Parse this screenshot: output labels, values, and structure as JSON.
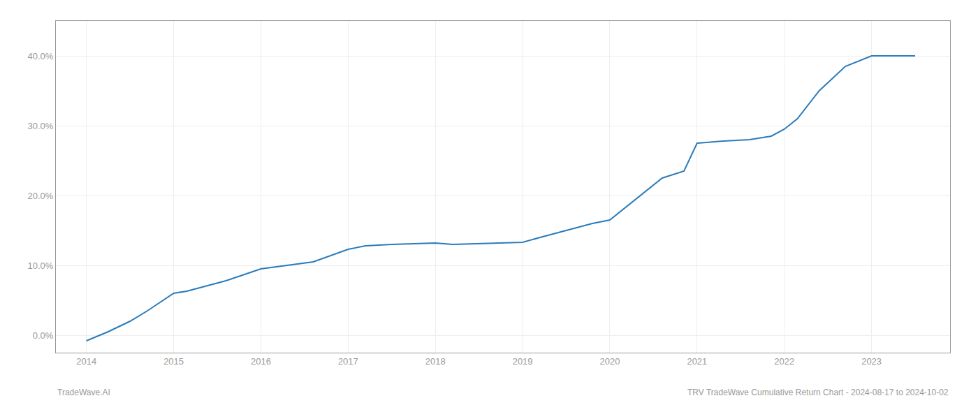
{
  "chart_data": {
    "type": "line",
    "x": [
      2014.0,
      2014.1,
      2014.25,
      2014.5,
      2014.7,
      2015.0,
      2015.15,
      2015.3,
      2015.6,
      2016.0,
      2016.3,
      2016.6,
      2017.0,
      2017.2,
      2017.5,
      2017.7,
      2018.0,
      2018.2,
      2018.5,
      2018.7,
      2019.0,
      2019.2,
      2019.5,
      2019.8,
      2020.0,
      2020.3,
      2020.6,
      2020.85,
      2021.0,
      2021.3,
      2021.6,
      2021.85,
      2022.0,
      2022.15,
      2022.4,
      2022.7,
      2023.0,
      2023.5
    ],
    "values": [
      -0.8,
      -0.3,
      0.5,
      2.0,
      3.5,
      6.0,
      6.3,
      6.8,
      7.8,
      9.5,
      10.0,
      10.5,
      12.3,
      12.8,
      13.0,
      13.1,
      13.2,
      13.0,
      13.1,
      13.2,
      13.3,
      14.0,
      15.0,
      16.0,
      16.5,
      19.5,
      22.5,
      23.5,
      27.5,
      27.8,
      28.0,
      28.5,
      29.5,
      31.0,
      35.0,
      38.5,
      40.0,
      40.0
    ],
    "color": "#2b7bba",
    "xlim": [
      2013.65,
      2023.9
    ],
    "xticks": [
      2014,
      2015,
      2016,
      2017,
      2018,
      2019,
      2020,
      2021,
      2022,
      2023
    ],
    "ylim": [
      -2.5,
      45
    ],
    "yticks": [
      {
        "value": 0,
        "label": "0.0%"
      },
      {
        "value": 10,
        "label": "10.0%"
      },
      {
        "value": 20,
        "label": "20.0%"
      },
      {
        "value": 30,
        "label": "30.0%"
      },
      {
        "value": 40,
        "label": "40.0%"
      }
    ],
    "grid": true,
    "annotations": [
      {
        "text": "TradeWave.AI"
      },
      {
        "text": "TRV TradeWave Cumulative Return Chart - 2024-08-17 to 2024-10-02"
      }
    ]
  }
}
